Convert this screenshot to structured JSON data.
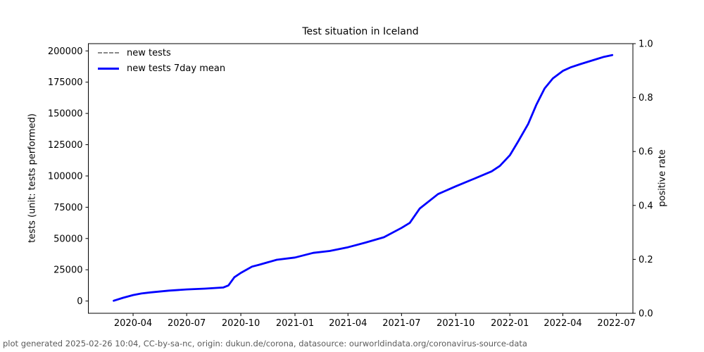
{
  "footer": {
    "text": "plot generated 2025-02-26 10:04, CC-by-sa-nc, origin: dukun.de/corona, datasource: ourworldindata.org/coronavirus-source-data"
  },
  "chart_data": {
    "type": "line",
    "title": "Test situation in Iceland",
    "ylabel": "tests (unit: tests performed)",
    "y2label": "positive rate",
    "xlabel": "",
    "grid": false,
    "legend_position": "upper-left",
    "background_color": "#ffffff",
    "spine_color": "#000000",
    "xlim": [
      "2020-01-16",
      "2022-07-29"
    ],
    "ylim": [
      -9800,
      205800
    ],
    "y2lim": [
      0.0,
      1.0
    ],
    "xticks": [
      "2020-04",
      "2020-07",
      "2020-10",
      "2021-01",
      "2021-04",
      "2021-07",
      "2021-10",
      "2022-01",
      "2022-04",
      "2022-07"
    ],
    "yticks": [
      0,
      25000,
      50000,
      75000,
      100000,
      125000,
      150000,
      175000,
      200000
    ],
    "y2ticks": [
      0.0,
      0.2,
      0.4,
      0.6,
      0.8,
      1.0
    ],
    "series": [
      {
        "name": "new tests",
        "color": "#888888",
        "dash": "dashed",
        "visible_in_plot": false,
        "points": []
      },
      {
        "name": "new tests 7day mean",
        "color": "#0000ff",
        "dash": "solid",
        "visible_in_plot": true,
        "points": [
          [
            "2020-02-28",
            200
          ],
          [
            "2020-03-15",
            2600
          ],
          [
            "2020-04-01",
            4800
          ],
          [
            "2020-04-15",
            6000
          ],
          [
            "2020-05-01",
            6900
          ],
          [
            "2020-06-01",
            8300
          ],
          [
            "2020-07-01",
            9300
          ],
          [
            "2020-08-01",
            9900
          ],
          [
            "2020-09-01",
            10800
          ],
          [
            "2020-09-10",
            12500
          ],
          [
            "2020-09-20",
            19000
          ],
          [
            "2020-10-01",
            22500
          ],
          [
            "2020-10-20",
            27500
          ],
          [
            "2020-11-01",
            29000
          ],
          [
            "2020-12-01",
            33000
          ],
          [
            "2021-01-01",
            34800
          ],
          [
            "2021-02-01",
            38500
          ],
          [
            "2021-03-01",
            40000
          ],
          [
            "2021-04-01",
            43000
          ],
          [
            "2021-05-01",
            46800
          ],
          [
            "2021-06-01",
            51000
          ],
          [
            "2021-07-01",
            58500
          ],
          [
            "2021-07-15",
            62500
          ],
          [
            "2021-08-01",
            74000
          ],
          [
            "2021-09-01",
            85500
          ],
          [
            "2021-10-01",
            91700
          ],
          [
            "2021-11-01",
            97700
          ],
          [
            "2021-12-01",
            103700
          ],
          [
            "2021-12-15",
            108000
          ],
          [
            "2022-01-01",
            116500
          ],
          [
            "2022-01-15",
            127500
          ],
          [
            "2022-02-01",
            141500
          ],
          [
            "2022-02-15",
            157000
          ],
          [
            "2022-03-01",
            170000
          ],
          [
            "2022-03-15",
            178000
          ],
          [
            "2022-04-01",
            184000
          ],
          [
            "2022-04-15",
            187000
          ],
          [
            "2022-05-01",
            189500
          ],
          [
            "2022-06-01",
            194000
          ],
          [
            "2022-06-10",
            195300
          ],
          [
            "2022-06-24",
            196700
          ]
        ]
      }
    ]
  }
}
